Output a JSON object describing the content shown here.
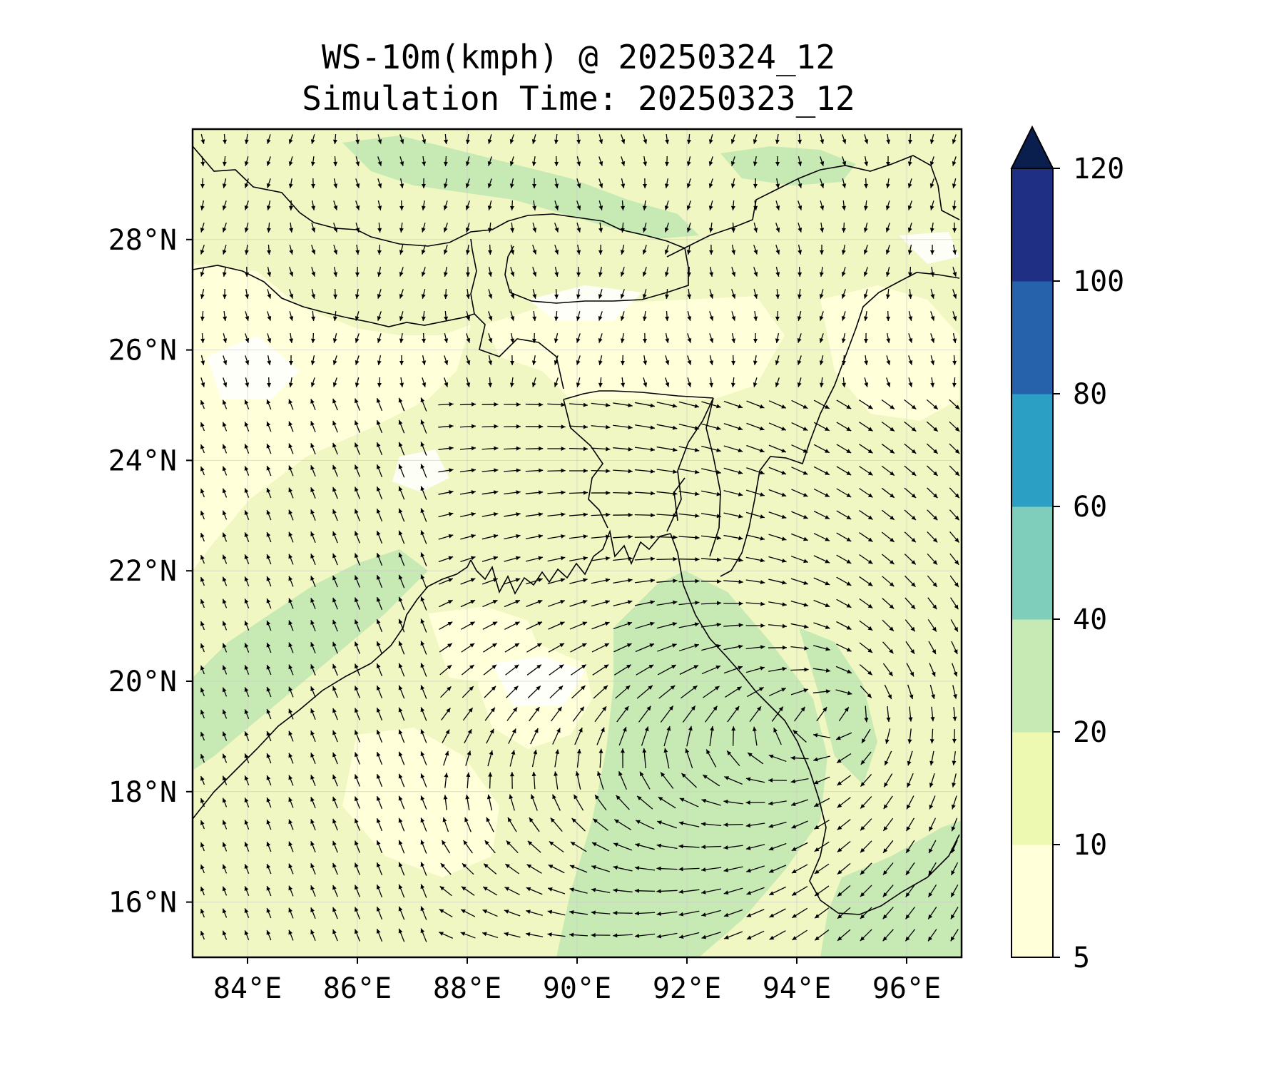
{
  "title": {
    "line1": "WS-10m(kmph) @ 20250324_12",
    "line2": "Simulation Time: 20250323_12"
  },
  "map": {
    "lon_range": [
      83,
      97
    ],
    "lat_range": [
      15,
      30
    ],
    "lon_ticks": [
      {
        "value": 84,
        "label": "84°E"
      },
      {
        "value": 86,
        "label": "86°E"
      },
      {
        "value": 88,
        "label": "88°E"
      },
      {
        "value": 90,
        "label": "90°E"
      },
      {
        "value": 92,
        "label": "92°E"
      },
      {
        "value": 94,
        "label": "94°E"
      },
      {
        "value": 96,
        "label": "96°E"
      }
    ],
    "lat_ticks": [
      {
        "value": 16,
        "label": "16°N"
      },
      {
        "value": 18,
        "label": "18°N"
      },
      {
        "value": 20,
        "label": "20°N"
      },
      {
        "value": 22,
        "label": "22°N"
      },
      {
        "value": 24,
        "label": "24°N"
      },
      {
        "value": 26,
        "label": "26°N"
      },
      {
        "value": 28,
        "label": "28°N"
      }
    ],
    "gridlines": true,
    "field": "10 m wind speed (kmph) with wind direction arrows"
  },
  "colorbar": {
    "levels": [
      5,
      10,
      20,
      40,
      60,
      80,
      100,
      120
    ],
    "tick_labels": [
      "5",
      "10",
      "20",
      "40",
      "60",
      "80",
      "100",
      "120"
    ],
    "colors": [
      "#ffffd9",
      "#edf8b1",
      "#c7e9b4",
      "#7fcdbb",
      "#2c9fc4",
      "#2562ab",
      "#1e2f84"
    ],
    "extend_color": "#0b1f4f",
    "extend": "max"
  }
}
